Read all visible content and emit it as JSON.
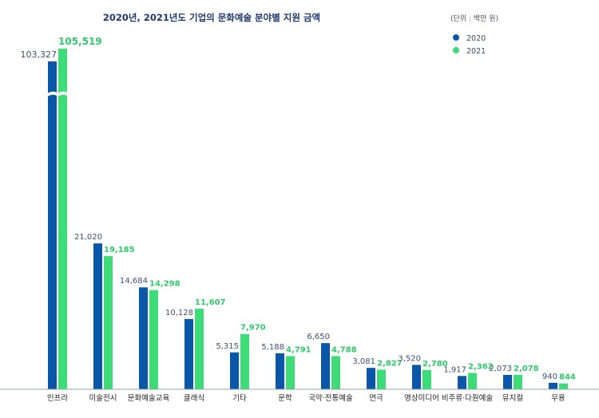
{
  "chart_data": {
    "type": "bar",
    "title": "2020년, 2021년도 기업의 문화예술 분야별 지원 금액",
    "unit_note": "(단위 : 백만 원)",
    "categories": [
      "인프라",
      "미술전시",
      "문화예술교육",
      "클래식",
      "기타",
      "문학",
      "국악·전통예술",
      "연극",
      "영상미디어",
      "비주류·다원예술",
      "뮤지컬",
      "무용"
    ],
    "series": [
      {
        "name": "2020",
        "color": "#0a56a8",
        "values": [
          103327,
          21020,
          14684,
          10128,
          5315,
          5188,
          6650,
          3081,
          3520,
          1917,
          2073,
          940
        ]
      },
      {
        "name": "2021",
        "color": "#3ddc78",
        "values": [
          105519,
          19185,
          14298,
          11607,
          7970,
          4791,
          4788,
          2827,
          2780,
          2362,
          2078,
          844
        ]
      }
    ],
    "value_labels": {
      "2020": [
        "103,327",
        "21,020",
        "14,684",
        "10,128",
        "5,315",
        "5,188",
        "6,650",
        "3,081",
        "3,520",
        "1,917",
        "2,073",
        "940"
      ],
      "2021": [
        "105,519",
        "19,185",
        "14,298",
        "11,607",
        "7,970",
        "4,791",
        "4,788",
        "2,827",
        "2,780",
        "2,362",
        "2,078",
        "844"
      ]
    },
    "axis_break": true,
    "legend_position": "top-right",
    "grid": false
  }
}
